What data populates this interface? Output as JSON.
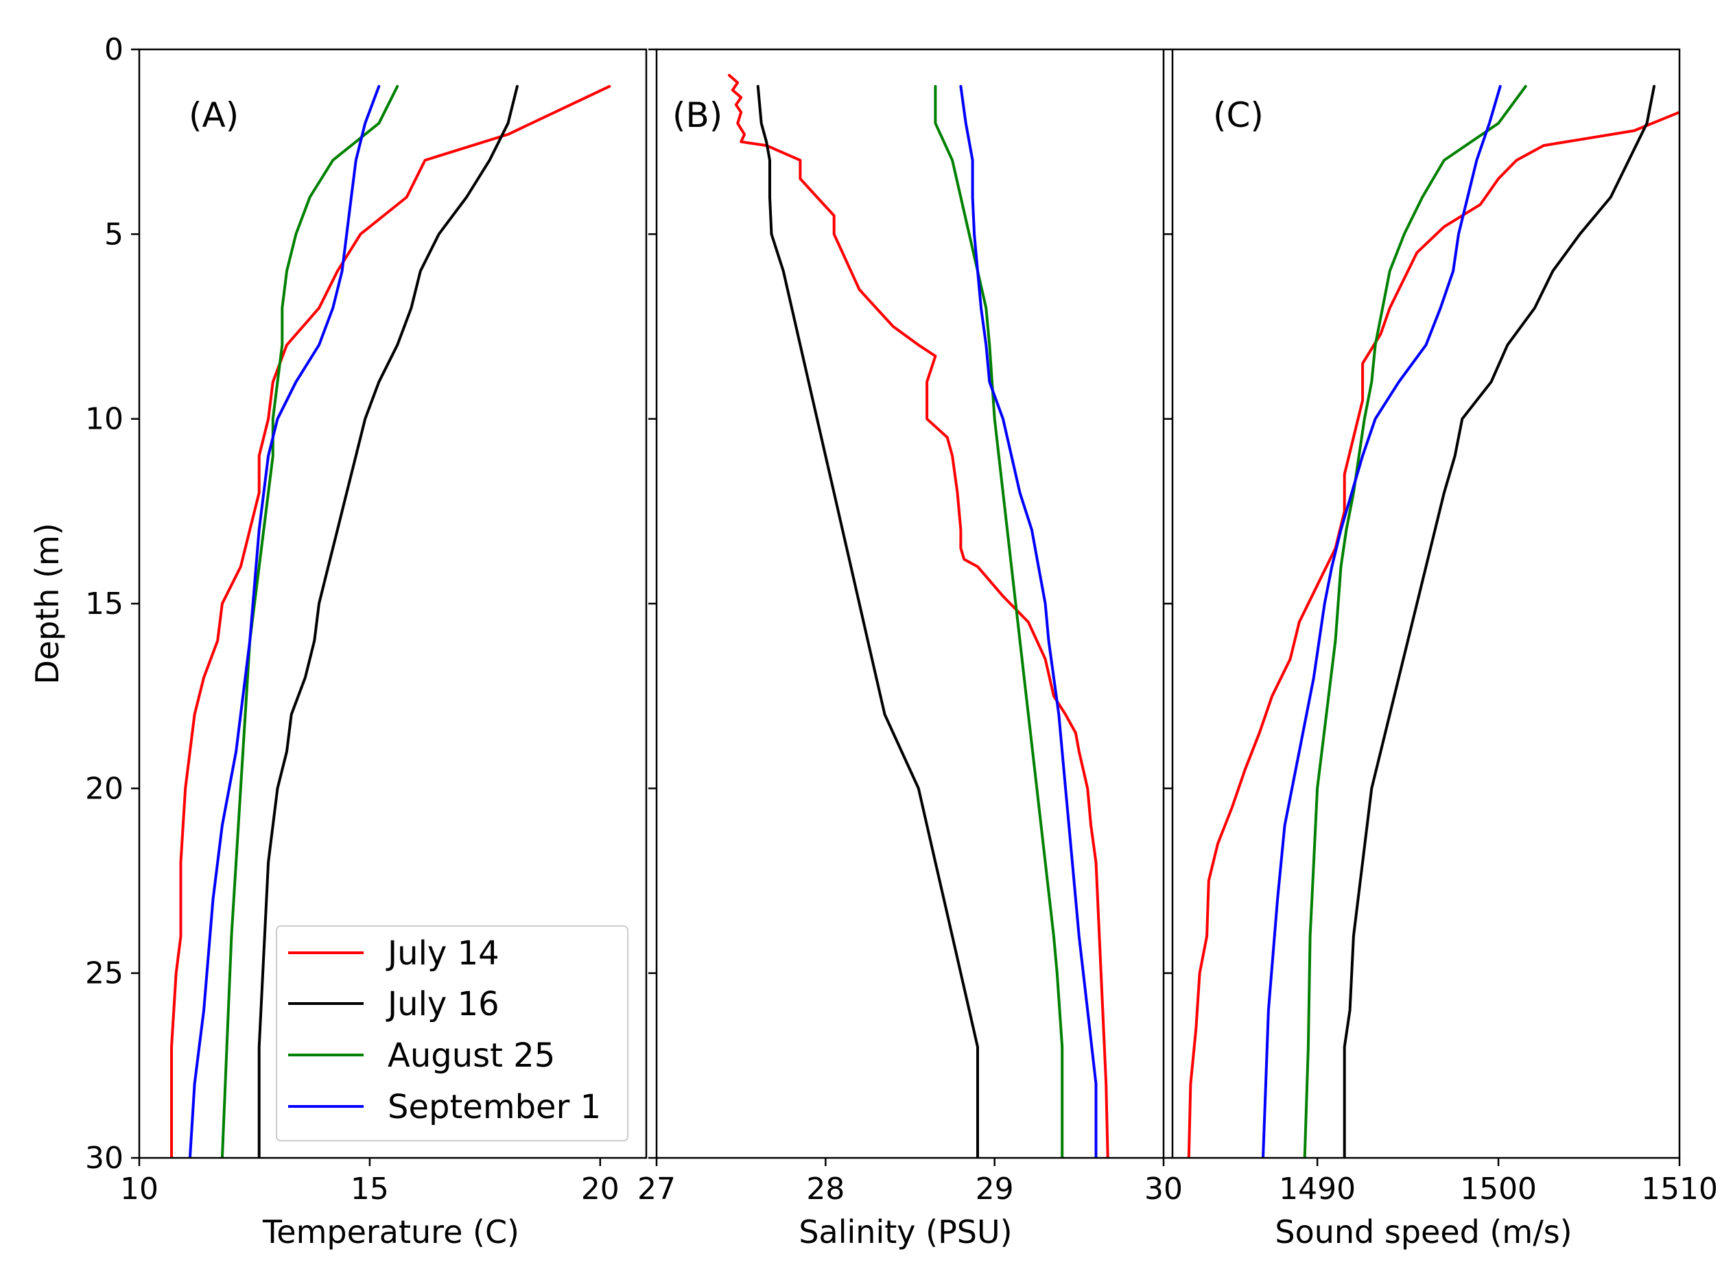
{
  "figure": {
    "ylabel": "Depth (m)",
    "yticks": [
      0,
      5,
      10,
      15,
      20,
      25,
      30
    ],
    "ylim": [
      0,
      30
    ],
    "legend": {
      "placement": "lower-left of panel A",
      "entries": [
        "July 14",
        "July 16",
        "August 25",
        "September 1"
      ]
    }
  },
  "colors": {
    "July 14": "#ff0000",
    "July 16": "#000000",
    "August 25": "#008000",
    "September 1": "#0000ff"
  },
  "chart_data": [
    {
      "type": "line",
      "panel": "(A)",
      "xlabel": "Temperature (C)",
      "ylabel": "Depth (m)",
      "xlim": [
        10,
        21
      ],
      "ylim": [
        30,
        0
      ],
      "xticks": [
        10,
        15,
        20
      ],
      "xtick_labels": [
        "10",
        "15",
        "20"
      ],
      "series": [
        {
          "name": "July 14",
          "x": [
            20.2,
            18,
            16.2,
            15.8,
            14.8,
            14.3,
            13.9,
            13.2,
            12.9,
            12.8,
            12.6,
            12.6,
            12.4,
            12.2,
            11.8,
            11.7,
            11.4,
            11.2,
            11.1,
            11,
            10.9,
            10.9,
            10.8,
            10.7,
            10.7
          ],
          "y": [
            1,
            2.3,
            3,
            4,
            5,
            6,
            7,
            8,
            9,
            10,
            11,
            12,
            13,
            14,
            15,
            16,
            17,
            18,
            19,
            20,
            22,
            24,
            25,
            27,
            30
          ]
        },
        {
          "name": "July 16",
          "x": [
            18.2,
            18,
            17.6,
            17.1,
            16.5,
            16.1,
            15.9,
            15.6,
            15.2,
            14.9,
            14.7,
            14.5,
            14.3,
            14.1,
            13.9,
            13.8,
            13.6,
            13.3,
            13.2,
            13,
            12.8,
            12.6,
            12.6
          ],
          "y": [
            1,
            2,
            3,
            4,
            5,
            6,
            7,
            8,
            9,
            10,
            11,
            12,
            13,
            14,
            15,
            16,
            17,
            18,
            19,
            20,
            22,
            27,
            30
          ]
        },
        {
          "name": "August 25",
          "x": [
            15.6,
            15.2,
            14.2,
            13.7,
            13.4,
            13.2,
            13.1,
            13.1,
            13.0,
            12.9,
            12.9,
            12.8,
            12.7,
            12.6,
            12.4,
            12.3,
            12.2,
            12.1,
            12.0,
            11.9,
            11.8
          ],
          "y": [
            1,
            2,
            3,
            4,
            5,
            6,
            7,
            8,
            9,
            10,
            11,
            12,
            13,
            14,
            16,
            18,
            20,
            22,
            24,
            27,
            30
          ]
        },
        {
          "name": "September 1",
          "x": [
            15.2,
            14.9,
            14.7,
            14.6,
            14.5,
            14.4,
            14.2,
            13.9,
            13.4,
            13.0,
            12.8,
            12.6,
            12.4,
            12.1,
            11.8,
            11.6,
            11.4,
            11.2,
            11.1
          ],
          "y": [
            1,
            2,
            3,
            4,
            5,
            6,
            7,
            8,
            9,
            10,
            11,
            13,
            16,
            19,
            21,
            23,
            26,
            28,
            30
          ]
        }
      ]
    },
    {
      "type": "line",
      "panel": "(B)",
      "xlabel": "Salinity (PSU)",
      "ylabel": "",
      "xlim": [
        27,
        30
      ],
      "ylim": [
        30,
        0
      ],
      "xticks": [
        27,
        28,
        29,
        30
      ],
      "xtick_labels": [
        "27",
        "28",
        "29",
        "30"
      ],
      "series": [
        {
          "name": "July 14",
          "x": [
            27.43,
            27.48,
            27.45,
            27.5,
            27.47,
            27.5,
            27.48,
            27.52,
            27.5,
            27.65,
            27.85,
            27.85,
            27.95,
            28.05,
            28.05,
            28.15,
            28.2,
            28.3,
            28.4,
            28.55,
            28.65,
            28.6,
            28.6,
            28.72,
            28.75,
            28.78,
            28.8,
            28.8,
            28.82,
            28.9,
            29.05,
            29.2,
            29.3,
            29.35,
            29.42,
            29.48,
            29.5,
            29.55,
            29.57,
            29.6,
            29.62,
            29.64,
            29.66,
            29.67
          ],
          "y": [
            0.7,
            0.9,
            1.1,
            1.3,
            1.5,
            1.7,
            2.0,
            2.3,
            2.5,
            2.6,
            3.0,
            3.5,
            4.0,
            4.5,
            5.0,
            6.0,
            6.5,
            7.0,
            7.5,
            8.0,
            8.3,
            9.0,
            10.0,
            10.5,
            11.0,
            12.0,
            13.0,
            13.5,
            13.8,
            14.0,
            14.8,
            15.5,
            16.5,
            17.5,
            18.0,
            18.5,
            19.0,
            20.0,
            21.0,
            22.0,
            24.0,
            26.0,
            28.0,
            30.0
          ]
        },
        {
          "name": "July 16",
          "x": [
            27.6,
            27.62,
            27.65,
            27.67,
            27.67,
            27.68,
            27.68,
            27.75,
            27.8,
            27.85,
            27.9,
            27.95,
            28.0,
            28.05,
            28.1,
            28.15,
            28.2,
            28.25,
            28.3,
            28.35,
            28.45,
            28.55,
            28.6,
            28.65,
            28.7,
            28.8,
            28.85,
            28.9,
            28.9
          ],
          "y": [
            1,
            2,
            2.5,
            3,
            4,
            5,
            5,
            6,
            7,
            8,
            9,
            10,
            11,
            12,
            13,
            14,
            15,
            16,
            17,
            18,
            19,
            20,
            21,
            22,
            23,
            25,
            26,
            27,
            30
          ]
        },
        {
          "name": "August 25",
          "x": [
            28.65,
            28.65,
            28.75,
            28.8,
            28.85,
            28.9,
            28.95,
            28.97,
            29.0,
            29.05,
            29.1,
            29.15,
            29.2,
            29.25,
            29.3,
            29.35,
            29.37,
            29.4,
            29.4
          ],
          "y": [
            1,
            2,
            3,
            4,
            5,
            6,
            7,
            8,
            10,
            12,
            14,
            16,
            18,
            20,
            22,
            24,
            25,
            27,
            30
          ]
        },
        {
          "name": "September 1",
          "x": [
            28.8,
            28.83,
            28.87,
            28.87,
            28.88,
            28.9,
            28.92,
            28.95,
            28.97,
            29.05,
            29.1,
            29.15,
            29.22,
            29.26,
            29.3,
            29.32,
            29.35,
            29.38,
            29.42,
            29.46,
            29.5,
            29.55,
            29.6,
            29.6
          ],
          "y": [
            1,
            2,
            3,
            4,
            5,
            6,
            7,
            8,
            9,
            10,
            11,
            12,
            13,
            14,
            15,
            16,
            17,
            18,
            20,
            22,
            24,
            26,
            28,
            30
          ]
        }
      ]
    },
    {
      "type": "line",
      "panel": "(C)",
      "xlabel": "Sound speed (m/s)",
      "ylabel": "",
      "xlim": [
        1482,
        1510
      ],
      "ylim": [
        30,
        0
      ],
      "xticks": [
        1490,
        1500,
        1510
      ],
      "xtick_labels": [
        "1490",
        "1500",
        "1510"
      ],
      "series": [
        {
          "name": "July 14",
          "x": [
            1510,
            1507.5,
            1502.5,
            1501,
            1500,
            1499,
            1497,
            1495.5,
            1494.5,
            1494,
            1493.5,
            1492.5,
            1492.5,
            1492,
            1491.5,
            1491.5,
            1491,
            1490,
            1489,
            1488.5,
            1487.5,
            1486.8,
            1486,
            1485.3,
            1484.5,
            1484,
            1483.9,
            1483.5,
            1483.3,
            1483,
            1482.9
          ],
          "y": [
            1.7,
            2.2,
            2.6,
            3.0,
            3.5,
            4.2,
            4.8,
            5.5,
            6.5,
            7.0,
            7.7,
            8.5,
            9.5,
            10.5,
            11.5,
            12.5,
            13.5,
            14.5,
            15.5,
            16.5,
            17.5,
            18.5,
            19.5,
            20.5,
            21.5,
            22.5,
            24.0,
            25.0,
            26.5,
            28.0,
            30.0
          ]
        },
        {
          "name": "July 16",
          "x": [
            1508.6,
            1508.2,
            1507.2,
            1506.2,
            1504.5,
            1503,
            1502,
            1500.5,
            1499.6,
            1498,
            1497.6,
            1497,
            1496.5,
            1496,
            1495.5,
            1495,
            1494.5,
            1494,
            1493.5,
            1493,
            1492.5,
            1492,
            1491.8,
            1491.5,
            1491.5
          ],
          "y": [
            1,
            2,
            3,
            4,
            5,
            6,
            7,
            8,
            9,
            10,
            11,
            12,
            13,
            14,
            15,
            16,
            17,
            18,
            19,
            20,
            22,
            24,
            26,
            27,
            30
          ]
        },
        {
          "name": "August 25",
          "x": [
            1501.5,
            1500,
            1497,
            1495.8,
            1494.8,
            1494,
            1493.6,
            1493.2,
            1493,
            1492.6,
            1492.3,
            1492,
            1491.6,
            1491.3,
            1491,
            1490.5,
            1490,
            1489.8,
            1489.6,
            1489.5,
            1489.3
          ],
          "y": [
            1,
            2,
            3,
            4,
            5,
            6,
            7,
            8,
            9,
            10,
            11,
            12,
            13,
            14,
            16,
            18,
            20,
            22,
            24,
            27,
            30
          ]
        },
        {
          "name": "September 1",
          "x": [
            1500.1,
            1499.5,
            1498.8,
            1498.3,
            1497.8,
            1497.5,
            1496.8,
            1496,
            1494.5,
            1493.2,
            1492.5,
            1491.9,
            1491.3,
            1490.8,
            1490.4,
            1489.8,
            1489,
            1488.2,
            1487.8,
            1487.3,
            1487
          ],
          "y": [
            1,
            2,
            3,
            4,
            5,
            6,
            7,
            8,
            9,
            10,
            11,
            12,
            13,
            14,
            15,
            17,
            19,
            21,
            23,
            26,
            30
          ]
        }
      ]
    }
  ]
}
